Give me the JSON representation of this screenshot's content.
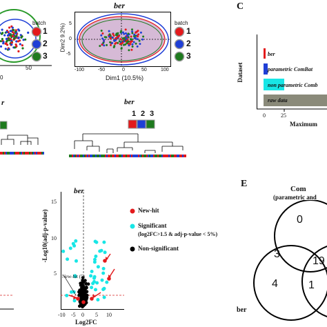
{
  "pca_left": {
    "xtick_50": "50",
    "xtick_0": "0",
    "legend_title": "batch",
    "legend": [
      "1",
      "2",
      "3"
    ]
  },
  "pca_ber": {
    "title": "ber",
    "xlabel": "Dim1 (10.5%)",
    "ylabel": "Dim2 9.2%)",
    "xticks": [
      "-100",
      "-50",
      "0",
      "50",
      "100"
    ],
    "yticks": [
      "5",
      "0",
      "-5"
    ],
    "legend_title": "batch",
    "legend": [
      "1",
      "2",
      "3"
    ]
  },
  "panel_c": {
    "letter": "C",
    "ylabel": "Dataset",
    "xlabel": "Maximum",
    "xticks": [
      "0",
      "25"
    ],
    "bars": [
      "ber",
      "parametric ComBat",
      "non parametric Comb",
      "raw data"
    ]
  },
  "dendro_left": {
    "title": "r"
  },
  "dendro_ber": {
    "title": "ber",
    "labels": [
      "1",
      "2",
      "3"
    ]
  },
  "volcano": {
    "title": "ber",
    "ylabel": "-Log10(adj-p-value)",
    "xlabel": "Log2FC",
    "yticks": [
      "15",
      "10",
      "5"
    ],
    "xticks": [
      "-10",
      "-5",
      "0",
      "5",
      "10"
    ],
    "annotation": "New-hit (5)"
  },
  "volcano_legend": {
    "new_hit": "New-hit",
    "significant": "Significant",
    "significant_note": "(log2FC>1.5 & adj-p-value < 5%)",
    "non_significant": "Non-significant"
  },
  "panel_e": {
    "letter": "E",
    "title1": "Com",
    "title2": "(parametric and",
    "counts": [
      "0",
      "3",
      "19",
      "4",
      "1"
    ],
    "label": "ber"
  },
  "colors": {
    "red": "#e31a1c",
    "blue": "#1f3fd6",
    "green": "#1e7a1e",
    "cyan": "#18e6e6",
    "ellipse": "#c8a3c8",
    "bar_gray": "#8a8a7a"
  }
}
